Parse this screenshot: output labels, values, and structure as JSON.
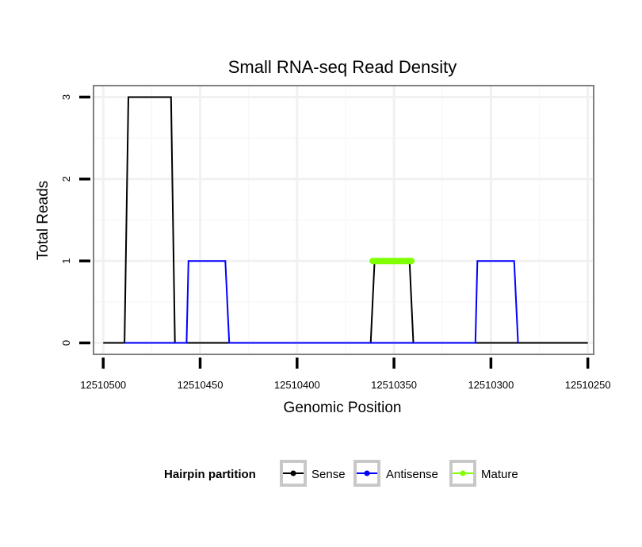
{
  "chart_data": {
    "type": "line",
    "title": "Small RNA-seq Read Density",
    "xlabel": "Genomic Position",
    "ylabel": "Total Reads",
    "xlim": [
      12510505,
      12510247
    ],
    "ylim": [
      -0.14,
      3.14
    ],
    "x_reversed": true,
    "x_ticks": [
      12510500,
      12510450,
      12510400,
      12510350,
      12510300,
      12510250
    ],
    "x_tick_labels": [
      "12510500",
      "12510450",
      "12510400",
      "12510350",
      "12510300",
      "12510250"
    ],
    "y_ticks": [
      0,
      1,
      2,
      3
    ],
    "y_tick_labels": [
      "0",
      "1",
      "2",
      "3"
    ],
    "grid": true,
    "legend": {
      "title": "Hairpin partition",
      "position": "bottom",
      "entries": [
        "Sense",
        "Antisense",
        "Mature"
      ]
    },
    "series": [
      {
        "name": "Sense",
        "color": "#000000",
        "x": [
          12510500,
          12510489,
          12510487,
          12510465,
          12510463,
          12510362,
          12510360,
          12510342,
          12510340,
          12510250
        ],
        "y": [
          0,
          0,
          3,
          3,
          0,
          0,
          1,
          1,
          0,
          0
        ]
      },
      {
        "name": "Antisense",
        "color": "#0000ff",
        "x": [
          12510489,
          12510457,
          12510456,
          12510437,
          12510435,
          12510340,
          12510308,
          12510307,
          12510288,
          12510286
        ],
        "y": [
          0,
          0,
          1,
          1,
          0,
          0,
          0,
          1,
          1,
          0
        ]
      },
      {
        "name": "Mature",
        "color": "#7fff00",
        "x": [
          12510361,
          12510341
        ],
        "y": [
          1,
          1
        ]
      }
    ]
  }
}
